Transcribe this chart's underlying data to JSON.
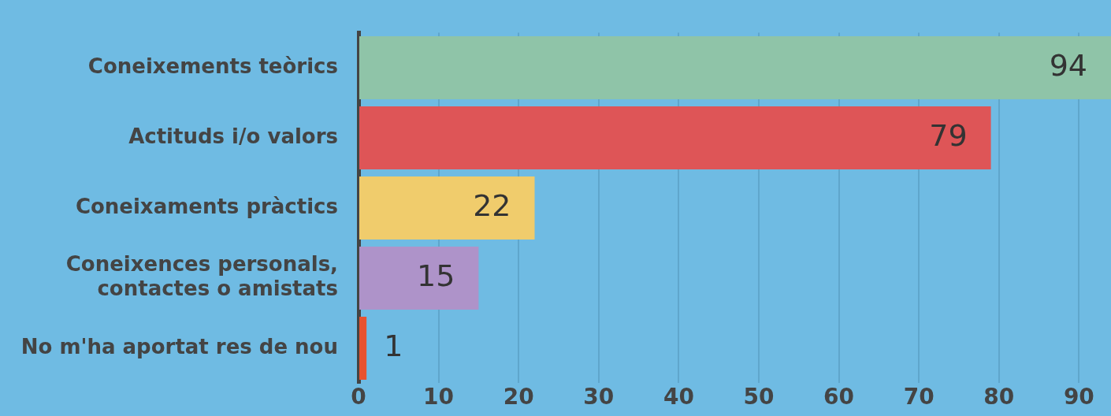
{
  "chart_data": {
    "type": "bar",
    "orientation": "horizontal",
    "categories": [
      "Coneixements teòrics",
      "Actituds i/o valors",
      "Coneixaments pràctics",
      "Coneixences personals,\ncontactes o amistats",
      "No m'ha aportat res de nou"
    ],
    "values": [
      94,
      79,
      22,
      15,
      1
    ],
    "colors": [
      "#8fc4a8",
      "#de5557",
      "#f0cc6c",
      "#ae93c9",
      "#e8522f"
    ],
    "xlim": [
      0,
      94
    ],
    "xticks": [
      0,
      10,
      20,
      30,
      40,
      50,
      60,
      70,
      80,
      90
    ],
    "grid": "x",
    "legend": false,
    "data_labels": true
  }
}
